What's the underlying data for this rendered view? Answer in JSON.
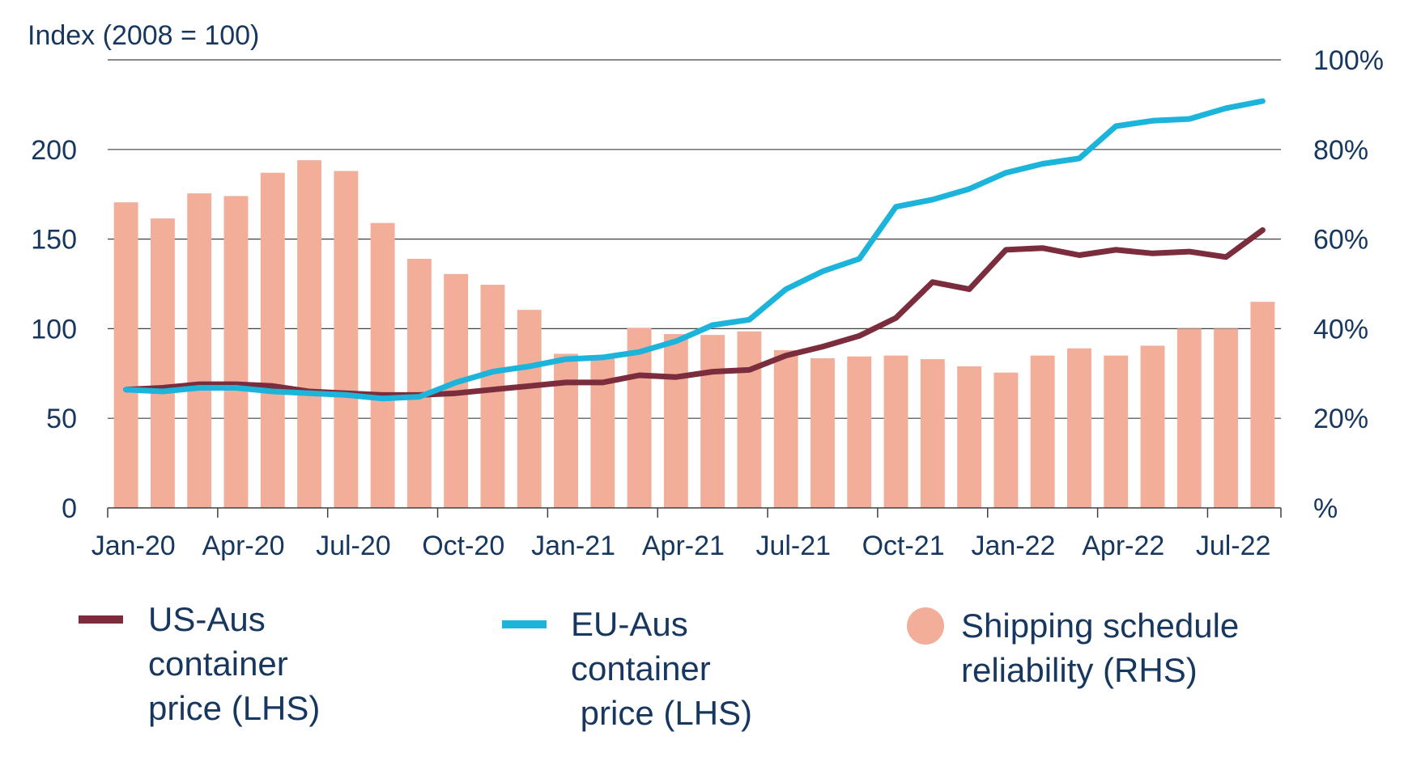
{
  "chart_data": {
    "type": "bar-line-combo",
    "left_axis": {
      "title": "Index (2008 = 100)",
      "ticks": [
        0,
        50,
        100,
        150,
        200
      ],
      "ylim": [
        0,
        250
      ]
    },
    "right_axis": {
      "ticks": [
        "%",
        "20%",
        "40%",
        "60%",
        "80%",
        "100%"
      ],
      "ylim": [
        0,
        100
      ]
    },
    "x_labels": [
      "Jan-20",
      "Apr-20",
      "Jul-20",
      "Oct-20",
      "Jan-21",
      "Apr-21",
      "Jul-21",
      "Oct-21",
      "Jan-22",
      "Apr-22",
      "Jul-22"
    ],
    "months": [
      "Jan-20",
      "Feb-20",
      "Mar-20",
      "Apr-20",
      "May-20",
      "Jun-20",
      "Jul-20",
      "Aug-20",
      "Sep-20",
      "Oct-20",
      "Nov-20",
      "Dec-20",
      "Jan-21",
      "Feb-21",
      "Mar-21",
      "Apr-21",
      "May-21",
      "Jun-21",
      "Jul-21",
      "Aug-21",
      "Sep-21",
      "Oct-21",
      "Nov-21",
      "Dec-21",
      "Jan-22",
      "Feb-22",
      "Mar-22",
      "Apr-22",
      "May-22",
      "Jun-22",
      "Jul-22",
      "Aug-22"
    ],
    "grid": true,
    "legend_position": "bottom",
    "series": [
      {
        "name": "Shipping schedule reliability (RHS)",
        "type": "bar",
        "axis": "right",
        "color": "#F2AE98",
        "values": [
          68.2,
          64.6,
          70.2,
          69.6,
          74.8,
          77.6,
          75.2,
          63.6,
          55.6,
          52.2,
          49.8,
          44.2,
          34.4,
          33.6,
          40.2,
          38.8,
          38.6,
          39.4,
          35.2,
          33.4,
          33.8,
          34.0,
          33.2,
          31.6,
          30.2,
          34.0,
          35.6,
          34.0,
          36.2,
          40.0,
          40.0,
          46.0
        ]
      },
      {
        "name": "US-Aus container price (LHS)",
        "type": "line",
        "axis": "left",
        "color": "#7B2D3E",
        "values": [
          66,
          67,
          69,
          69,
          68,
          65,
          64,
          63,
          63,
          64,
          66,
          68,
          70,
          70,
          74,
          73,
          76,
          77,
          85,
          90,
          96,
          106,
          126,
          122,
          144,
          145,
          141,
          144,
          142,
          143,
          140,
          155
        ]
      },
      {
        "name": "EU-Aus container price (LHS)",
        "type": "line",
        "axis": "left",
        "color": "#1CB4DB",
        "values": [
          66,
          65,
          67,
          67,
          65,
          64,
          63,
          61,
          62,
          70,
          76,
          79,
          83,
          84,
          87,
          93,
          102,
          105,
          122,
          132,
          139,
          168,
          172,
          178,
          187,
          192,
          195,
          213,
          216,
          217,
          223,
          227
        ]
      }
    ]
  },
  "legend": [
    {
      "label_lines": [
        "US-Aus",
        "container",
        "price (LHS)"
      ],
      "color": "#7B2D3E"
    },
    {
      "label_lines": [
        "EU-Aus",
        "container",
        " price (LHS)"
      ],
      "color": "#1CB4DB"
    },
    {
      "label_lines": [
        "Shipping schedule",
        "reliability (RHS)"
      ],
      "color": "#F2AE98"
    }
  ]
}
